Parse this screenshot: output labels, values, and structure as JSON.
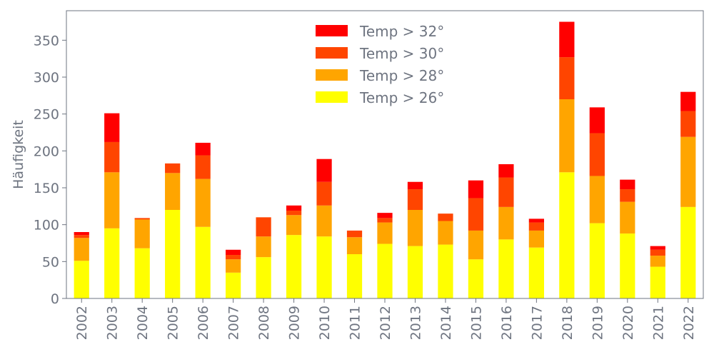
{
  "chart_data": {
    "type": "bar",
    "stacked": true,
    "title": "",
    "xlabel": "",
    "ylabel": "Häufigkeit",
    "ylim": [
      0,
      390
    ],
    "yticks": [
      0,
      50,
      100,
      150,
      200,
      250,
      300,
      350
    ],
    "grid": false,
    "legend_position": "top-center",
    "categories": [
      "2002",
      "2003",
      "2004",
      "2005",
      "2006",
      "2007",
      "2008",
      "2009",
      "2010",
      "2011",
      "2012",
      "2013",
      "2014",
      "2015",
      "2016",
      "2017",
      "2018",
      "2019",
      "2020",
      "2021",
      "2022"
    ],
    "series": [
      {
        "name": "Temp > 26°",
        "color": "#ffff00",
        "values": [
          51,
          95,
          68,
          120,
          97,
          35,
          56,
          86,
          84,
          60,
          74,
          71,
          73,
          53,
          80,
          69,
          171,
          102,
          88,
          43,
          124
        ]
      },
      {
        "name": "Temp > 28°",
        "color": "#ffa500",
        "values": [
          31,
          76,
          39,
          50,
          65,
          18,
          28,
          27,
          42,
          23,
          29,
          49,
          32,
          39,
          44,
          23,
          99,
          64,
          43,
          15,
          95
        ]
      },
      {
        "name": "Temp > 30°",
        "color": "#ff4500",
        "values": [
          4,
          41,
          2,
          13,
          32,
          6,
          26,
          6,
          32,
          9,
          6,
          28,
          10,
          44,
          40,
          11,
          57,
          58,
          17,
          8,
          35
        ]
      },
      {
        "name": "Temp > 32°",
        "color": "#ff0000",
        "values": [
          4,
          39,
          0,
          0,
          17,
          7,
          0,
          7,
          31,
          0,
          7,
          10,
          0,
          24,
          18,
          5,
          48,
          35,
          13,
          5,
          26
        ]
      }
    ],
    "legend_order": [
      "Temp > 32°",
      "Temp > 30°",
      "Temp > 28°",
      "Temp > 26°"
    ],
    "axis_color": "#6e7480"
  }
}
